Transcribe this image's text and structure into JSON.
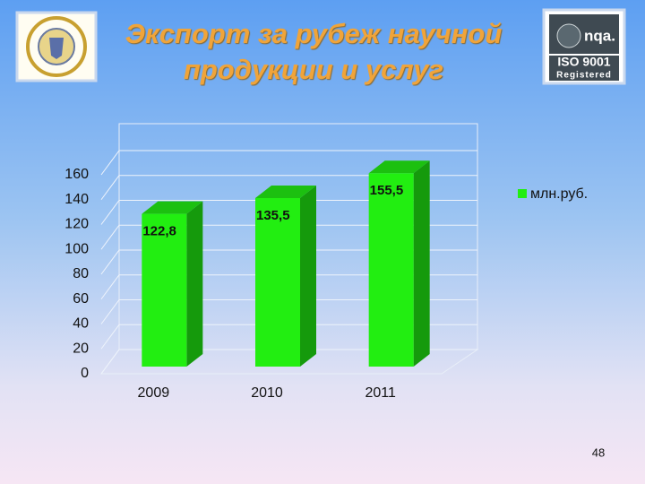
{
  "header": {
    "title": "Экспорт за рубеж научной продукции и услуг",
    "logo_nqa": "nqa.",
    "logo_iso": "ISO 9001",
    "logo_registered": "Registered"
  },
  "chart_data": {
    "type": "bar",
    "categories": [
      "2009",
      "2010",
      "2011"
    ],
    "series": [
      {
        "name": "млн.руб.",
        "color": "#22ee11",
        "values": [
          122.8,
          135.5,
          155.5
        ],
        "value_labels": [
          "122,8",
          "135,5",
          "155,5"
        ]
      }
    ],
    "ylim": [
      0,
      160
    ],
    "yticks": [
      0,
      20,
      40,
      60,
      80,
      100,
      120,
      140,
      160
    ],
    "grid": true,
    "legend": "right"
  },
  "page_number": "48"
}
